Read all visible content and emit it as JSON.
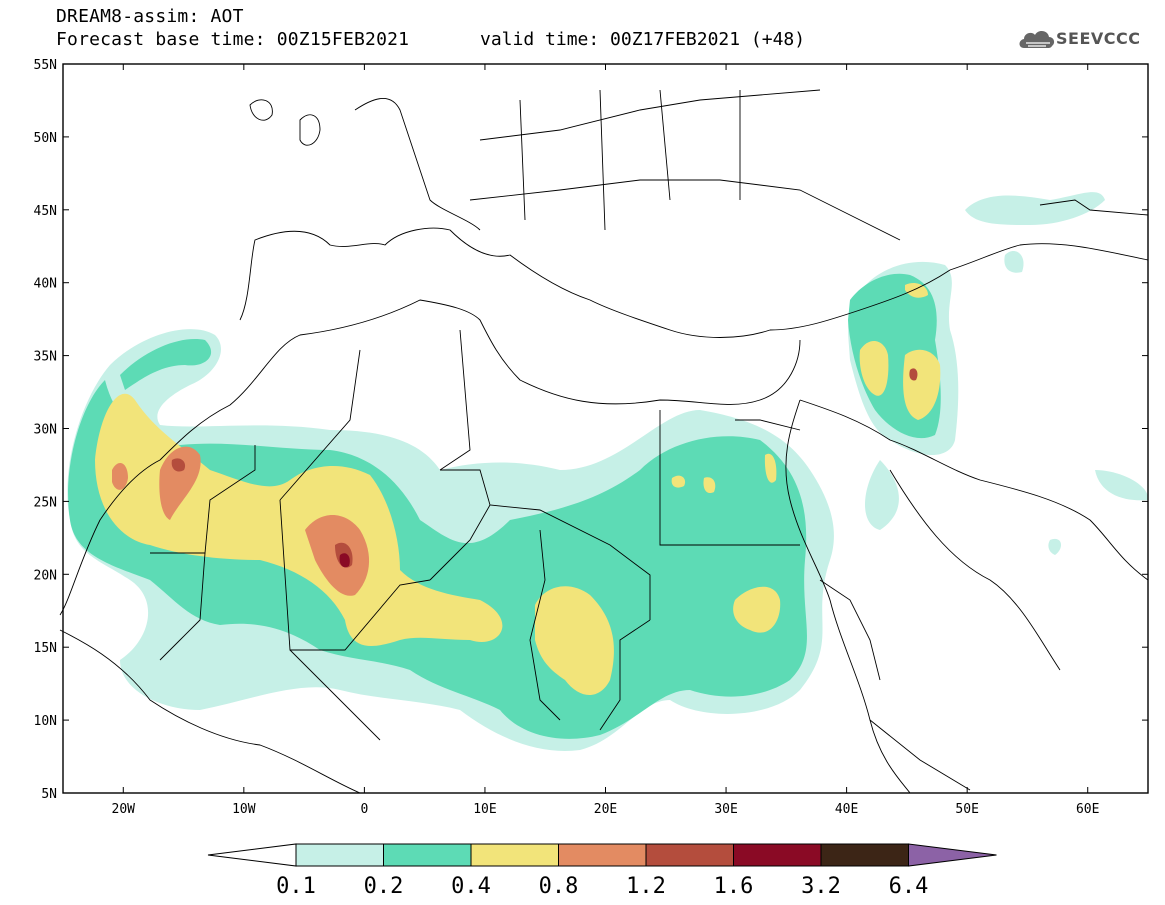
{
  "header": {
    "line1": "DREAM8-assim: AOT",
    "base": "Forecast base time: 00Z15FEB2021",
    "valid": "valid time: 00Z17FEB2021 (+48)"
  },
  "logo": {
    "text": "SEEVCCC",
    "icon": "cloud-icon"
  },
  "map": {
    "lat_range": [
      5,
      55
    ],
    "lon_range": [
      -25,
      65
    ],
    "lat_labels": [
      "55N",
      "50N",
      "45N",
      "40N",
      "35N",
      "30N",
      "25N",
      "20N",
      "15N",
      "10N",
      "5N"
    ],
    "lon_labels": [
      "20W",
      "10W",
      "0",
      "10E",
      "20E",
      "30E",
      "40E",
      "50E",
      "60E"
    ],
    "variable": "AOT"
  },
  "colorbar": {
    "levels": [
      "0.1",
      "0.2",
      "0.4",
      "0.8",
      "1.2",
      "1.6",
      "3.2",
      "6.4"
    ],
    "colors": [
      "#c6f0e7",
      "#5ddbb5",
      "#f2e47a",
      "#e38b62",
      "#b44d3d",
      "#8a0a25",
      "#3c2516",
      "#8c62a6"
    ]
  }
}
